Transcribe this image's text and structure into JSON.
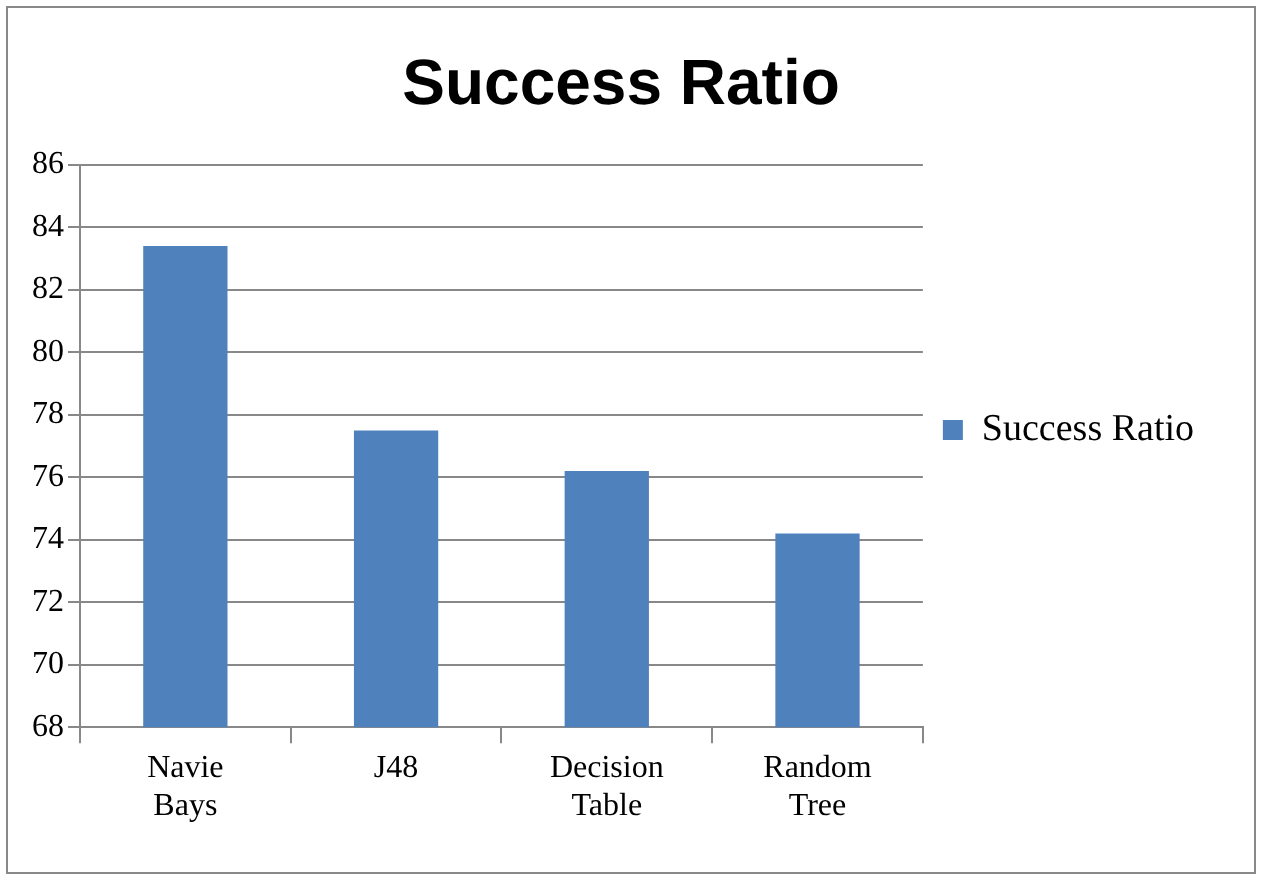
{
  "chart_data": {
    "type": "bar",
    "title": "Success Ratio",
    "categories": [
      "Navie Bays",
      "J48",
      "Decision Table",
      "Random Tree"
    ],
    "series": [
      {
        "name": "Success Ratio",
        "color": "#4f81bd",
        "values": [
          83.4,
          77.5,
          76.2,
          74.2
        ]
      }
    ],
    "ylim": [
      68,
      86
    ],
    "yticks": [
      68,
      70,
      72,
      74,
      76,
      78,
      80,
      82,
      84,
      86
    ],
    "grid": "y",
    "legend": "right"
  }
}
